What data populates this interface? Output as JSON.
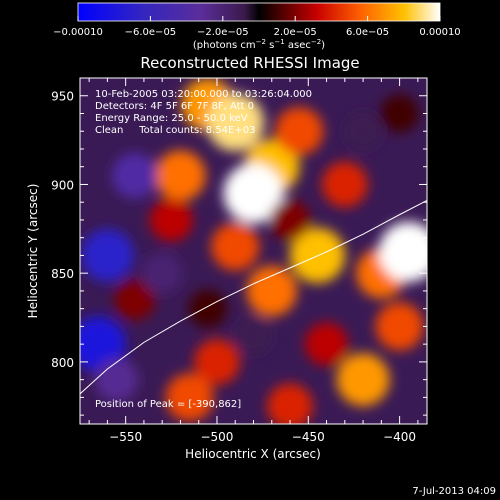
{
  "chart_data": {
    "type": "heatmap",
    "title": "Reconstructed RHESSI Image",
    "xlabel": "Heliocentric X (arcsec)",
    "ylabel": "Heliocentric Y (arcsec)",
    "xlim": [
      -575,
      -385
    ],
    "ylim": [
      765,
      960
    ],
    "x_ticks": [
      -550,
      -500,
      -450,
      -400
    ],
    "x_tick_labels": [
      "−550",
      "−500",
      "−450",
      "−400"
    ],
    "y_ticks": [
      800,
      850,
      900,
      950
    ],
    "y_tick_labels": [
      "800",
      "850",
      "900",
      "950"
    ],
    "colorbar": {
      "range": [
        -0.0001,
        0.0001
      ],
      "ticks": [
        -0.0001,
        -6e-05,
        -2e-05,
        2e-05,
        6e-05,
        0.0001
      ],
      "tick_labels": [
        "−0.00010",
        "−6.0e−05",
        "−2.0e−05",
        "2.0e−05",
        "6.0e−05",
        "0.00010"
      ],
      "unit_prefix": "(photons cm",
      "unit_exp1": "−2",
      "unit_mid": " s",
      "unit_exp2": "−1",
      "unit_mid2": " asec",
      "unit_exp3": "−2",
      "unit_suffix": ")"
    },
    "annotations": [
      "10-Feb-2005 03:20:00.000 to 03:26:04.000",
      "Detectors: 4F 5F 6F 7F 8F, Att 0",
      "Energy Range: 25.0 - 50.0 keV",
      "Clean     Total counts: 8.54E+03"
    ],
    "peak_label": "Position of Peak = [-390,862]",
    "peak": [
      -390,
      862
    ],
    "limb_curve": {
      "x": [
        -575,
        -560,
        -540,
        -520,
        -500,
        -480,
        -460,
        -440,
        -420,
        -400,
        -385
      ],
      "y": [
        782,
        796,
        811,
        823,
        834,
        844,
        853,
        862,
        872,
        883,
        891
      ]
    },
    "image_blobs": [
      {
        "x": -505,
        "y": 945,
        "v": 7e-05
      },
      {
        "x": -490,
        "y": 935,
        "v": 9e-05
      },
      {
        "x": -470,
        "y": 910,
        "v": 8e-05
      },
      {
        "x": -480,
        "y": 895,
        "v": 0.0001
      },
      {
        "x": -520,
        "y": 905,
        "v": 6e-05
      },
      {
        "x": -455,
        "y": 930,
        "v": 5e-05
      },
      {
        "x": -430,
        "y": 900,
        "v": 4e-05
      },
      {
        "x": -445,
        "y": 860,
        "v": 8e-05
      },
      {
        "x": -410,
        "y": 850,
        "v": 6e-05
      },
      {
        "x": -395,
        "y": 862,
        "v": 0.0001
      },
      {
        "x": -400,
        "y": 820,
        "v": 5e-05
      },
      {
        "x": -420,
        "y": 790,
        "v": 7e-05
      },
      {
        "x": -440,
        "y": 810,
        "v": 3e-05
      },
      {
        "x": -470,
        "y": 840,
        "v": 6e-05
      },
      {
        "x": -490,
        "y": 865,
        "v": 5e-05
      },
      {
        "x": -525,
        "y": 880,
        "v": 3e-05
      },
      {
        "x": -500,
        "y": 800,
        "v": 4e-05
      },
      {
        "x": -515,
        "y": 780,
        "v": 5e-05
      },
      {
        "x": -460,
        "y": 775,
        "v": 4e-05
      },
      {
        "x": -545,
        "y": 835,
        "v": 2e-05
      },
      {
        "x": -560,
        "y": 860,
        "v": -7e-05
      },
      {
        "x": -545,
        "y": 905,
        "v": -4e-05
      },
      {
        "x": -565,
        "y": 810,
        "v": -8e-05
      },
      {
        "x": -555,
        "y": 790,
        "v": -3e-05
      },
      {
        "x": -530,
        "y": 850,
        "v": -2e-05
      },
      {
        "x": -505,
        "y": 830,
        "v": 1e-05
      },
      {
        "x": -460,
        "y": 880,
        "v": 2e-05
      },
      {
        "x": -420,
        "y": 930,
        "v": -1e-05
      },
      {
        "x": -400,
        "y": 940,
        "v": 1e-05
      },
      {
        "x": -480,
        "y": 815,
        "v": -1e-05
      }
    ]
  },
  "footer": {
    "date": "7-Jul-2013 04:09"
  }
}
